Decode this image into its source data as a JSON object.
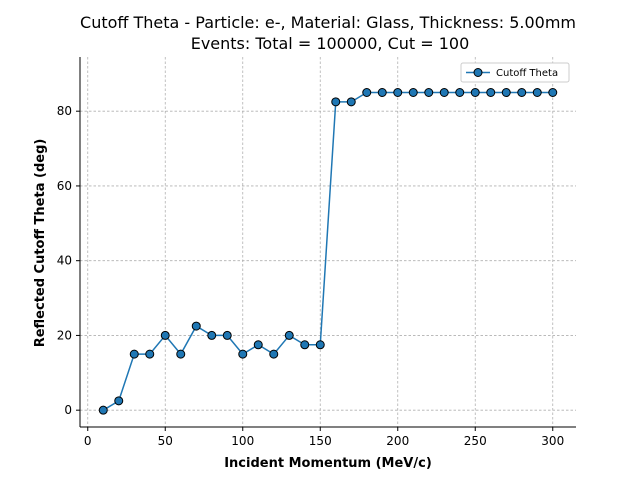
{
  "chart_data": {
    "type": "line",
    "title": "Cutoff Theta - Particle: e-, Material: Glass, Thickness: 5.00mm",
    "subtitle": "Events: Total = 100000, Cut = 100",
    "xlabel": "Incident Momentum (MeV/c)",
    "ylabel": "Reflected Cutoff Theta (deg)",
    "xlim": [
      -5,
      315
    ],
    "ylim": [
      -4.5,
      94.5
    ],
    "xticks": [
      0,
      50,
      100,
      150,
      200,
      250,
      300
    ],
    "yticks": [
      0,
      20,
      40,
      60,
      80
    ],
    "grid": true,
    "legend_position": "top-right",
    "series": [
      {
        "name": "Cutoff Theta",
        "color": "#1f77b4",
        "marker": "circle",
        "x": [
          10,
          20,
          30,
          40,
          50,
          60,
          70,
          80,
          90,
          100,
          110,
          120,
          130,
          140,
          150,
          160,
          170,
          180,
          190,
          200,
          210,
          220,
          230,
          240,
          250,
          260,
          270,
          280,
          290,
          300
        ],
        "y": [
          0,
          2.5,
          15,
          15,
          20,
          15,
          22.5,
          20,
          20,
          15,
          17.5,
          15,
          20,
          17.5,
          17.5,
          82.5,
          82.5,
          85,
          85,
          85,
          85,
          85,
          85,
          85,
          85,
          85,
          85,
          85,
          85,
          85
        ]
      }
    ]
  }
}
